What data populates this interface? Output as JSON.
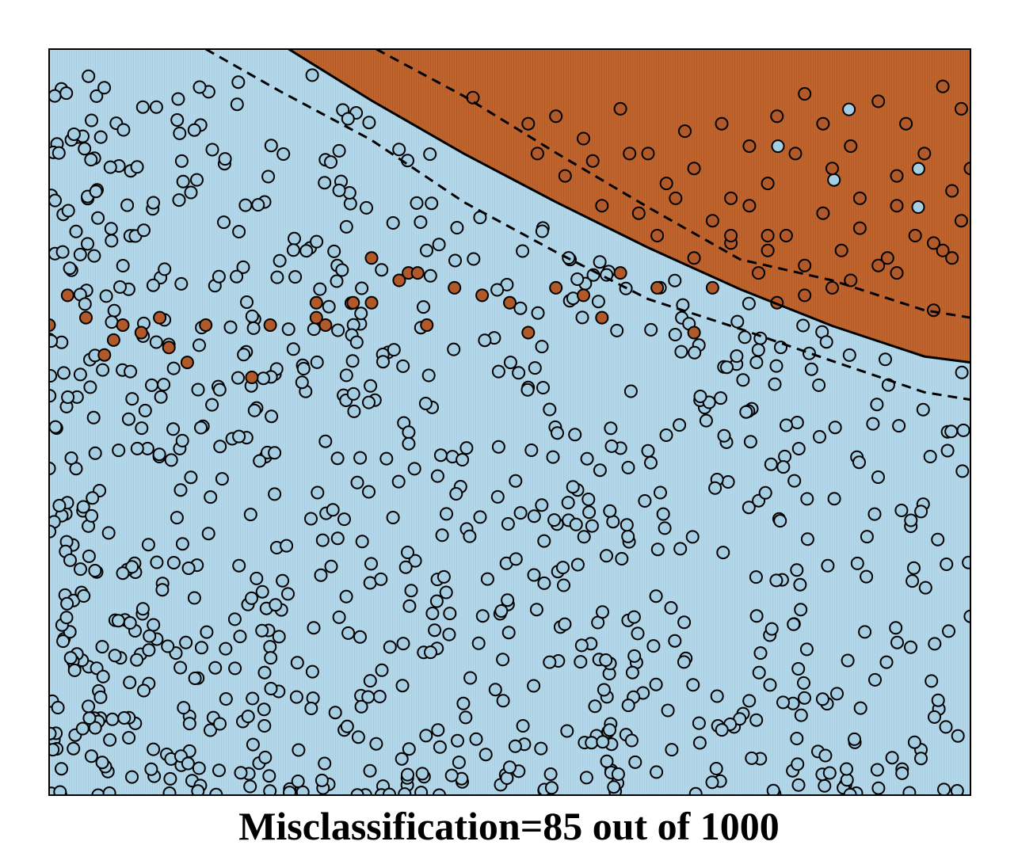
{
  "chart_data": {
    "type": "scatter",
    "title": "Misclassification=85 out of 1000",
    "xlabel": "",
    "ylabel": "",
    "xlim": [
      0,
      1
    ],
    "ylim": [
      0,
      1
    ],
    "grid": false,
    "legend": "none",
    "colors": {
      "class_0": "#a6cee3",
      "class_1": "#b15928",
      "region_0": "#b4d8ea",
      "region_1": "#c0652e",
      "point_edge": "#000000",
      "boundary": "#000000"
    },
    "decision_boundary": {
      "style": "solid",
      "x": [
        0.26,
        0.35,
        0.45,
        0.55,
        0.65,
        0.75,
        0.85,
        0.95,
        1.0
      ],
      "y": [
        1.0,
        0.931,
        0.86,
        0.795,
        0.734,
        0.678,
        0.629,
        0.588,
        0.58
      ]
    },
    "margin_upper": {
      "style": "dashed",
      "x": [
        0.355,
        0.45,
        0.55,
        0.65,
        0.75,
        0.85,
        0.95,
        1.0
      ],
      "y": [
        1.0,
        0.937,
        0.861,
        0.788,
        0.718,
        0.69,
        0.65,
        0.64
      ]
    },
    "margin_lower": {
      "style": "dashed",
      "x": [
        0.17,
        0.25,
        0.35,
        0.45,
        0.55,
        0.65,
        0.75,
        0.85,
        0.95,
        1.0
      ],
      "y": [
        1.0,
        0.944,
        0.878,
        0.795,
        0.728,
        0.665,
        0.625,
        0.582,
        0.54,
        0.53
      ]
    },
    "series": [
      {
        "class": 1,
        "x": [
          0.46,
          0.52,
          0.55,
          0.58,
          0.62,
          0.65,
          0.69,
          0.73,
          0.76,
          0.79,
          0.82,
          0.84,
          0.87,
          0.9,
          0.93,
          0.97,
          0.99,
          0.53,
          0.56,
          0.59,
          0.63,
          0.67,
          0.7,
          0.74,
          0.78,
          0.81,
          0.85,
          0.88,
          0.92,
          0.95,
          0.98,
          1.0,
          0.6,
          0.64,
          0.68,
          0.72,
          0.76,
          0.8,
          0.84,
          0.88,
          0.92,
          0.96,
          0.99,
          0.66,
          0.7,
          0.74,
          0.78,
          0.82,
          0.86,
          0.9,
          0.94,
          0.98,
          0.72,
          0.77,
          0.82,
          0.87,
          0.92,
          0.97,
          0.79,
          0.85,
          0.91,
          0.96,
          0.0,
          0.04,
          0.06,
          0.08,
          0.1,
          0.13,
          0.15,
          0.17,
          0.22,
          0.24,
          0.29,
          0.3,
          0.33,
          0.35,
          0.38,
          0.39,
          0.41,
          0.44,
          0.47,
          0.5,
          0.52,
          0.55,
          0.58,
          0.6,
          0.62,
          0.66,
          0.7,
          0.74,
          0.78,
          0.35,
          0.4,
          0.29,
          0.07,
          0.12,
          0.02
        ],
        "y": [
          0.935,
          0.9,
          0.91,
          0.88,
          0.92,
          0.86,
          0.89,
          0.9,
          0.87,
          0.91,
          0.94,
          0.9,
          0.87,
          0.93,
          0.9,
          0.95,
          0.92,
          0.86,
          0.83,
          0.85,
          0.86,
          0.82,
          0.84,
          0.8,
          0.82,
          0.86,
          0.84,
          0.8,
          0.83,
          0.86,
          0.81,
          0.84,
          0.79,
          0.78,
          0.8,
          0.77,
          0.79,
          0.75,
          0.78,
          0.76,
          0.79,
          0.74,
          0.77,
          0.75,
          0.72,
          0.74,
          0.75,
          0.71,
          0.73,
          0.71,
          0.75,
          0.72,
          0.68,
          0.7,
          0.67,
          0.69,
          0.7,
          0.73,
          0.66,
          0.68,
          0.72,
          0.65,
          0.63,
          0.64,
          0.59,
          0.63,
          0.62,
          0.6,
          0.58,
          0.63,
          0.56,
          0.63,
          0.64,
          0.63,
          0.66,
          0.72,
          0.69,
          0.7,
          0.63,
          0.68,
          0.67,
          0.66,
          0.62,
          0.68,
          0.67,
          0.64,
          0.7,
          0.68,
          0.62,
          0.75,
          0.73,
          0.66,
          0.7,
          0.66,
          0.61,
          0.64,
          0.67
        ]
      },
      {
        "class": 0,
        "n_points": 915,
        "note_generation": "Light blue points mostly below the boundary, denser toward the lower-left corner; includes a few misclassified points inside the orange region."
      }
    ]
  }
}
